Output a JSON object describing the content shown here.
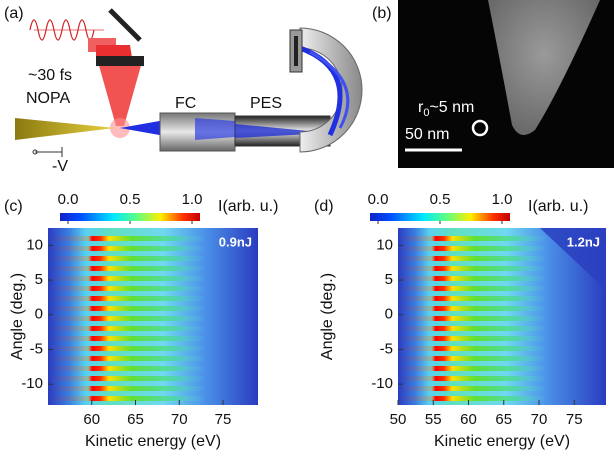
{
  "panel_a": {
    "label": "(a)",
    "pulse": "~30 fs",
    "source": "NOPA",
    "bias": "-V",
    "fc": "FC",
    "pes": "PES"
  },
  "panel_b": {
    "label": "(b)",
    "radius_symbol": "r",
    "radius_subscript": "0",
    "radius_value": "~5 nm",
    "scale_bar": "50 nm"
  },
  "chart_data": [
    {
      "type": "heatmap",
      "panel_label": "(c)",
      "annotation": "0.9nJ",
      "x_label": "Kinetic energy (eV)",
      "y_label": "Angle (deg.)",
      "xlim": [
        55,
        79
      ],
      "xticks": [
        60,
        65,
        70,
        75
      ],
      "ylim": [
        -13,
        12.5
      ],
      "yticks": [
        -10,
        -5,
        0,
        5,
        10
      ],
      "colorbar_label": "I(arb. u.)",
      "clim": [
        0,
        1
      ],
      "cticks": [
        {
          "value": 0,
          "label": "0.0"
        },
        {
          "value": 0.5,
          "label": "0.5"
        },
        {
          "value": 1,
          "label": "1.0"
        }
      ]
    },
    {
      "type": "heatmap",
      "panel_label": "(d)",
      "annotation": "1.2nJ",
      "x_label": "Kinetic energy (eV)",
      "y_label": "Angle (deg.)",
      "xlim": [
        50,
        79.5
      ],
      "xticks": [
        50,
        55,
        60,
        65,
        70,
        75
      ],
      "ylim": [
        -13,
        12.5
      ],
      "yticks": [
        -10,
        -5,
        0,
        5,
        10
      ],
      "colorbar_label": "I(arb. u.)",
      "clim": [
        0,
        1
      ],
      "cticks": [
        {
          "value": 0,
          "label": "0.0"
        },
        {
          "value": 0.5,
          "label": "0.5"
        },
        {
          "value": 1,
          "label": "1.0"
        }
      ]
    }
  ]
}
